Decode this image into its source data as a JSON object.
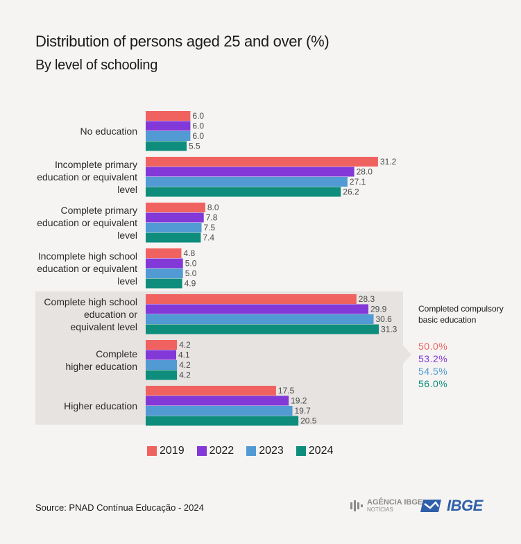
{
  "title": "Distribution of persons aged 25 and over (%)",
  "subtitle": "By level of schooling",
  "chart_data": {
    "type": "bar",
    "orientation": "horizontal",
    "categories": [
      [
        "No education"
      ],
      [
        "Incomplete primary",
        "education or equivalent",
        "level"
      ],
      [
        "Complete primary",
        "education or equivalent",
        "level"
      ],
      [
        "Incomplete high school",
        "education or equivalent",
        "level"
      ],
      [
        "Complete high school",
        "education or",
        "equivalent level"
      ],
      [
        "Complete",
        "higher education"
      ],
      [
        "Higher education"
      ]
    ],
    "series": [
      {
        "name": "2019",
        "color": "#f0625f",
        "values": [
          6.0,
          31.2,
          8.0,
          4.8,
          28.3,
          4.2,
          17.5
        ]
      },
      {
        "name": "2022",
        "color": "#8338d8",
        "values": [
          6.0,
          28.0,
          7.8,
          5.0,
          29.9,
          4.1,
          19.2
        ]
      },
      {
        "name": "2023",
        "color": "#519ad3",
        "values": [
          6.0,
          27.1,
          7.5,
          5.0,
          30.6,
          4.2,
          19.7
        ]
      },
      {
        "name": "2024",
        "color": "#0e8d7c",
        "values": [
          5.5,
          26.2,
          7.4,
          4.9,
          31.3,
          4.2,
          20.5
        ]
      }
    ],
    "highlighted_categories": [
      4,
      5,
      6
    ],
    "xlim": [
      0,
      31.3
    ],
    "grid": false,
    "legend": "bottom"
  },
  "callout": {
    "title": "Completed compulsory basic education",
    "values": [
      {
        "text": "50.0%",
        "color": "#f0625f"
      },
      {
        "text": "53.2%",
        "color": "#8338d8"
      },
      {
        "text": "54.5%",
        "color": "#519ad3"
      },
      {
        "text": "56.0%",
        "color": "#0e8d7c"
      }
    ]
  },
  "legend": [
    {
      "label": "2019",
      "color": "#f0625f"
    },
    {
      "label": "2022",
      "color": "#8338d8"
    },
    {
      "label": "2023",
      "color": "#519ad3"
    },
    {
      "label": "2024",
      "color": "#0e8d7c"
    }
  ],
  "source": "Source: PNAD Contínua Educação - 2024",
  "logos": {
    "agencia_main": "AGÊNCIA IBGE",
    "agencia_sub": "NOTÍCIAS",
    "ibge": "IBGE"
  }
}
